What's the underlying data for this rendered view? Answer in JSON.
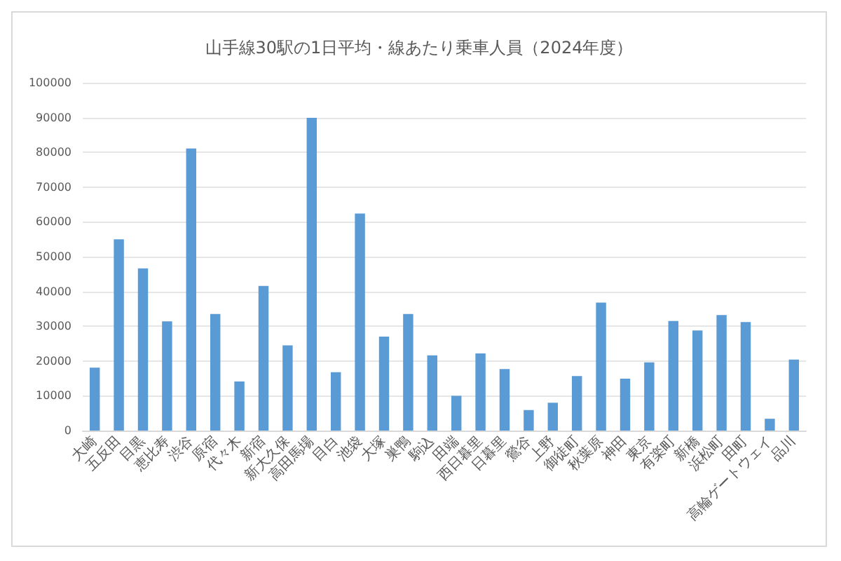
{
  "chart_data": {
    "type": "bar",
    "title": "山手線30駅の1日平均・線あたり乗車人員（2024年度）",
    "categories": [
      "大崎",
      "五反田",
      "目黒",
      "恵比寿",
      "渋谷",
      "原宿",
      "代々木",
      "新宿",
      "新大久保",
      "高田馬場",
      "目白",
      "池袋",
      "大塚",
      "巣鴨",
      "駒込",
      "田端",
      "西日暮里",
      "日暮里",
      "鶯谷",
      "上野",
      "御徒町",
      "秋葉原",
      "神田",
      "東京",
      "有楽町",
      "新橋",
      "浜松町",
      "田町",
      "高輪ゲートウェイ",
      "品川"
    ],
    "values": [
      18100,
      55000,
      46600,
      31400,
      81100,
      33500,
      14100,
      41600,
      24500,
      89900,
      16800,
      62400,
      27000,
      33500,
      21600,
      10000,
      22200,
      17700,
      5900,
      8000,
      15700,
      36800,
      14900,
      19600,
      31500,
      28800,
      33200,
      31200,
      3400,
      20400
    ],
    "color": "#5b9bd5",
    "ylim": [
      0,
      100000
    ],
    "yticks": [
      0,
      10000,
      20000,
      30000,
      40000,
      50000,
      60000,
      70000,
      80000,
      90000,
      100000
    ],
    "grid": "y"
  }
}
